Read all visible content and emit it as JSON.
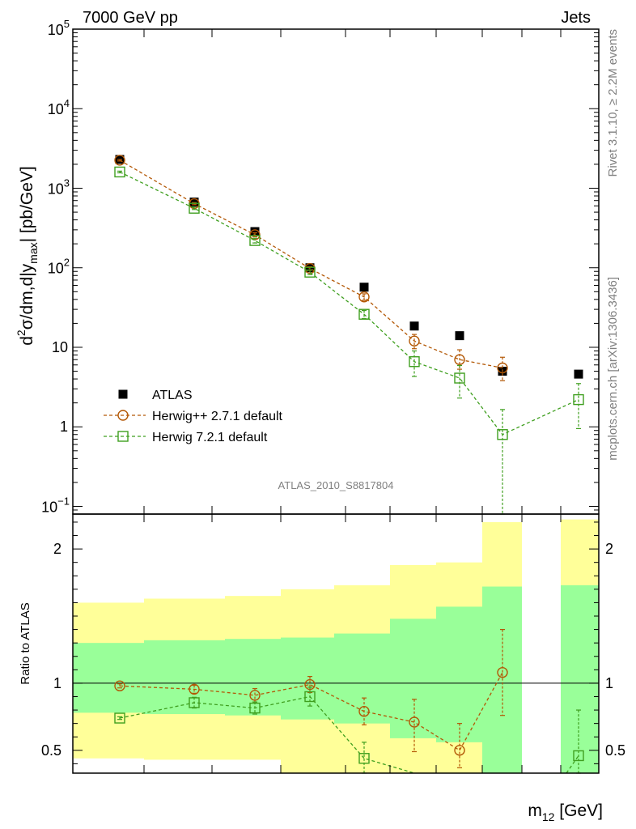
{
  "header": {
    "left": "7000 GeV pp",
    "right": "Jets"
  },
  "side_labels": {
    "rivet": "Rivet 3.1.10, ≥ 2.2M events",
    "mcplots": "mcplots.cern.ch [arXiv:1306.3436]"
  },
  "watermark": "ATLAS_2010_S8817804",
  "chart_data": [
    {
      "type": "scatter",
      "panel": "main",
      "ylabel": "d²σ/dm,d|y_max| [pb/GeV]",
      "ylabel_parts": {
        "a": "d",
        "sup": "2",
        "b": "σ/dm,d|y",
        "sub": "max",
        "c": "| [pb/GeV]"
      },
      "yscale": "log",
      "ylim": [
        0.08,
        100000
      ],
      "yticks": [
        {
          "v": 0.1,
          "base": "10",
          "exp": "−1"
        },
        {
          "v": 1,
          "text": "1"
        },
        {
          "v": 10,
          "text": "10"
        },
        {
          "v": 100,
          "base": "10",
          "exp": "2"
        },
        {
          "v": 1000,
          "base": "10",
          "exp": "3"
        },
        {
          "v": 10000,
          "base": "10",
          "exp": "4"
        },
        {
          "v": 100000,
          "base": "10",
          "exp": "5"
        }
      ],
      "legend_position": "bottom-left",
      "series": [
        {
          "name": "ATLAS",
          "marker": "square-filled",
          "color": "#000000",
          "values": [
            2300,
            670,
            285,
            100,
            57,
            18.5,
            14,
            5.0,
            null,
            4.6
          ]
        },
        {
          "name": "Herwig++ 2.7.1 default",
          "marker": "circle-open",
          "color": "#b35806",
          "values": [
            2250,
            640,
            260,
            98,
            43,
            12,
            7.0,
            5.5,
            null,
            null
          ],
          "err_lo": [
            2200,
            620,
            245,
            93,
            39,
            9.6,
            5.3,
            3.8,
            null,
            null
          ],
          "err_hi": [
            2300,
            660,
            275,
            103,
            47,
            14.5,
            9.3,
            7.5,
            null,
            null
          ]
        },
        {
          "name": "Herwig 7.2.1 default",
          "marker": "square-open",
          "color": "#3f9f1f",
          "values": [
            1600,
            560,
            220,
            88,
            26,
            6.6,
            4.1,
            0.8,
            null,
            2.2
          ],
          "err_lo": [
            1560,
            540,
            205,
            82,
            23,
            4.3,
            2.3,
            0.07,
            null,
            0.95
          ],
          "err_hi": [
            1640,
            580,
            235,
            94,
            29,
            9.0,
            5.9,
            1.65,
            null,
            3.5
          ]
        }
      ]
    },
    {
      "type": "scatter",
      "panel": "ratio",
      "xlabel": "m_12 [GeV]",
      "xlabel_parts": {
        "a": "m",
        "sub": "12",
        "b": " [GeV]"
      },
      "ylabel": "Ratio to ATLAS",
      "ylim": [
        0.33,
        2.26
      ],
      "yticks": [
        {
          "v": 0.5,
          "text": "0.5"
        },
        {
          "v": 1,
          "text": "1"
        },
        {
          "v": 2,
          "text": "2"
        }
      ],
      "bands": {
        "yellow": [
          [
            0.44,
            1.6
          ],
          [
            0.43,
            1.63
          ],
          [
            0.43,
            1.65
          ],
          [
            0.3,
            1.7
          ],
          [
            0.3,
            1.73
          ],
          [
            0.3,
            1.88
          ],
          [
            0.3,
            1.9
          ],
          [
            0.3,
            2.2
          ],
          [
            null,
            null
          ],
          [
            0.3,
            2.22
          ]
        ],
        "green": [
          [
            0.78,
            1.3
          ],
          [
            0.77,
            1.32
          ],
          [
            0.76,
            1.33
          ],
          [
            0.73,
            1.34
          ],
          [
            0.7,
            1.37
          ],
          [
            0.59,
            1.48
          ],
          [
            0.56,
            1.57
          ],
          [
            0.3,
            1.72
          ],
          [
            null,
            null
          ],
          [
            0.3,
            1.73
          ]
        ]
      },
      "series": [
        {
          "name": "Herwig++ 2.7.1 default",
          "color": "#b35806",
          "marker": "circle-open",
          "values": [
            0.98,
            0.955,
            0.91,
            0.99,
            0.79,
            0.71,
            0.5,
            1.08,
            null,
            null
          ],
          "err_lo": [
            0.965,
            0.925,
            0.86,
            0.93,
            0.69,
            0.49,
            0.37,
            0.76,
            null,
            null
          ],
          "err_hi": [
            0.995,
            0.985,
            0.96,
            1.05,
            0.89,
            0.88,
            0.7,
            1.4,
            null,
            null
          ]
        },
        {
          "name": "Herwig 7.2.1 default",
          "color": "#3f9f1f",
          "marker": "square-open",
          "values": [
            0.74,
            0.855,
            0.815,
            0.9,
            0.44,
            0.3,
            null,
            null,
            null,
            0.46
          ],
          "err_lo": [
            0.73,
            0.815,
            0.77,
            0.83,
            0.33,
            null,
            null,
            null,
            null,
            0.22
          ],
          "err_hi": [
            0.75,
            0.895,
            0.86,
            0.97,
            0.56,
            null,
            null,
            null,
            null,
            0.8
          ]
        }
      ]
    }
  ]
}
